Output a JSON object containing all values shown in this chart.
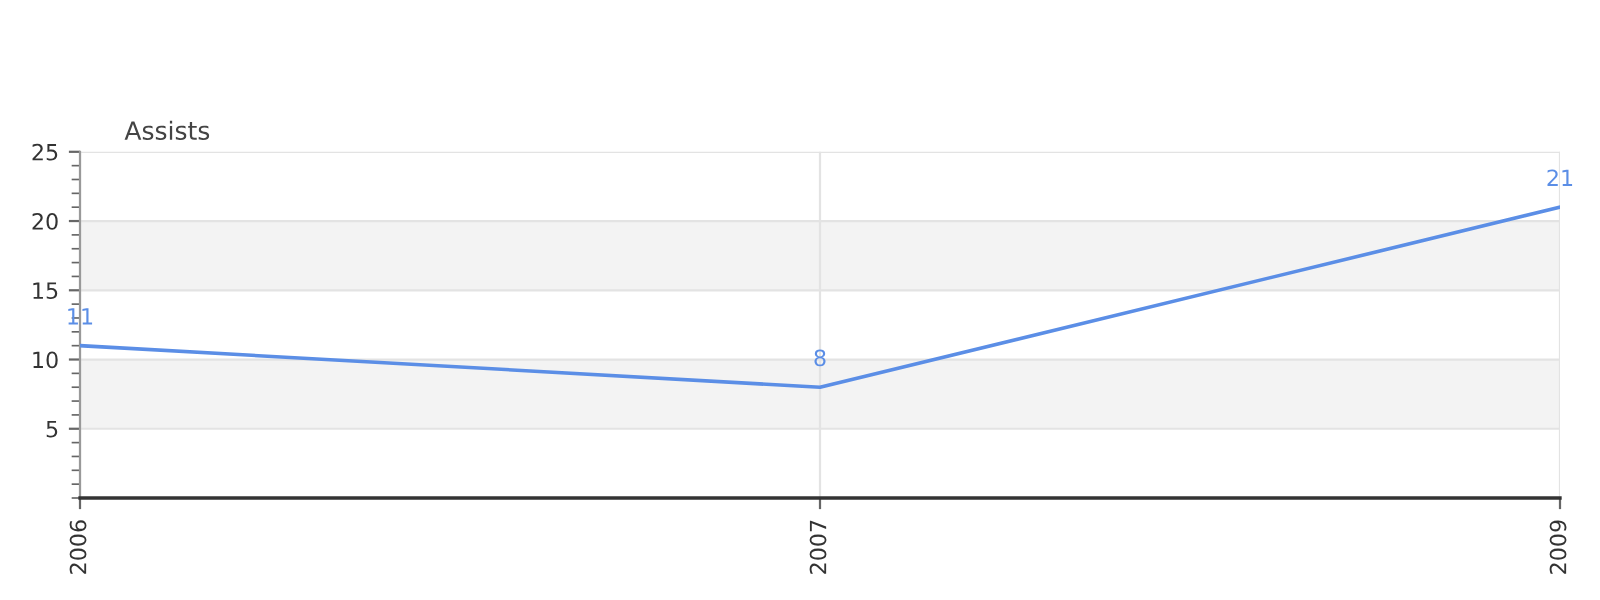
{
  "chart_data": {
    "type": "line",
    "ylabel": "Assists",
    "categories": [
      "2006",
      "2007",
      "2009"
    ],
    "series": [
      {
        "color": "#5b8ee6",
        "values": [
          11,
          8,
          21
        ]
      }
    ],
    "ylim": [
      0,
      25
    ],
    "yticks": [
      5,
      10,
      15,
      20,
      25
    ],
    "grid": true,
    "data_labels": true,
    "marker": "none",
    "line_style": "solid",
    "bands": [
      {
        "axis": "y",
        "from": 5,
        "to": 10,
        "color": "#f3f3f3"
      },
      {
        "axis": "y",
        "from": 15,
        "to": 20,
        "color": "#f3f3f3"
      }
    ]
  }
}
